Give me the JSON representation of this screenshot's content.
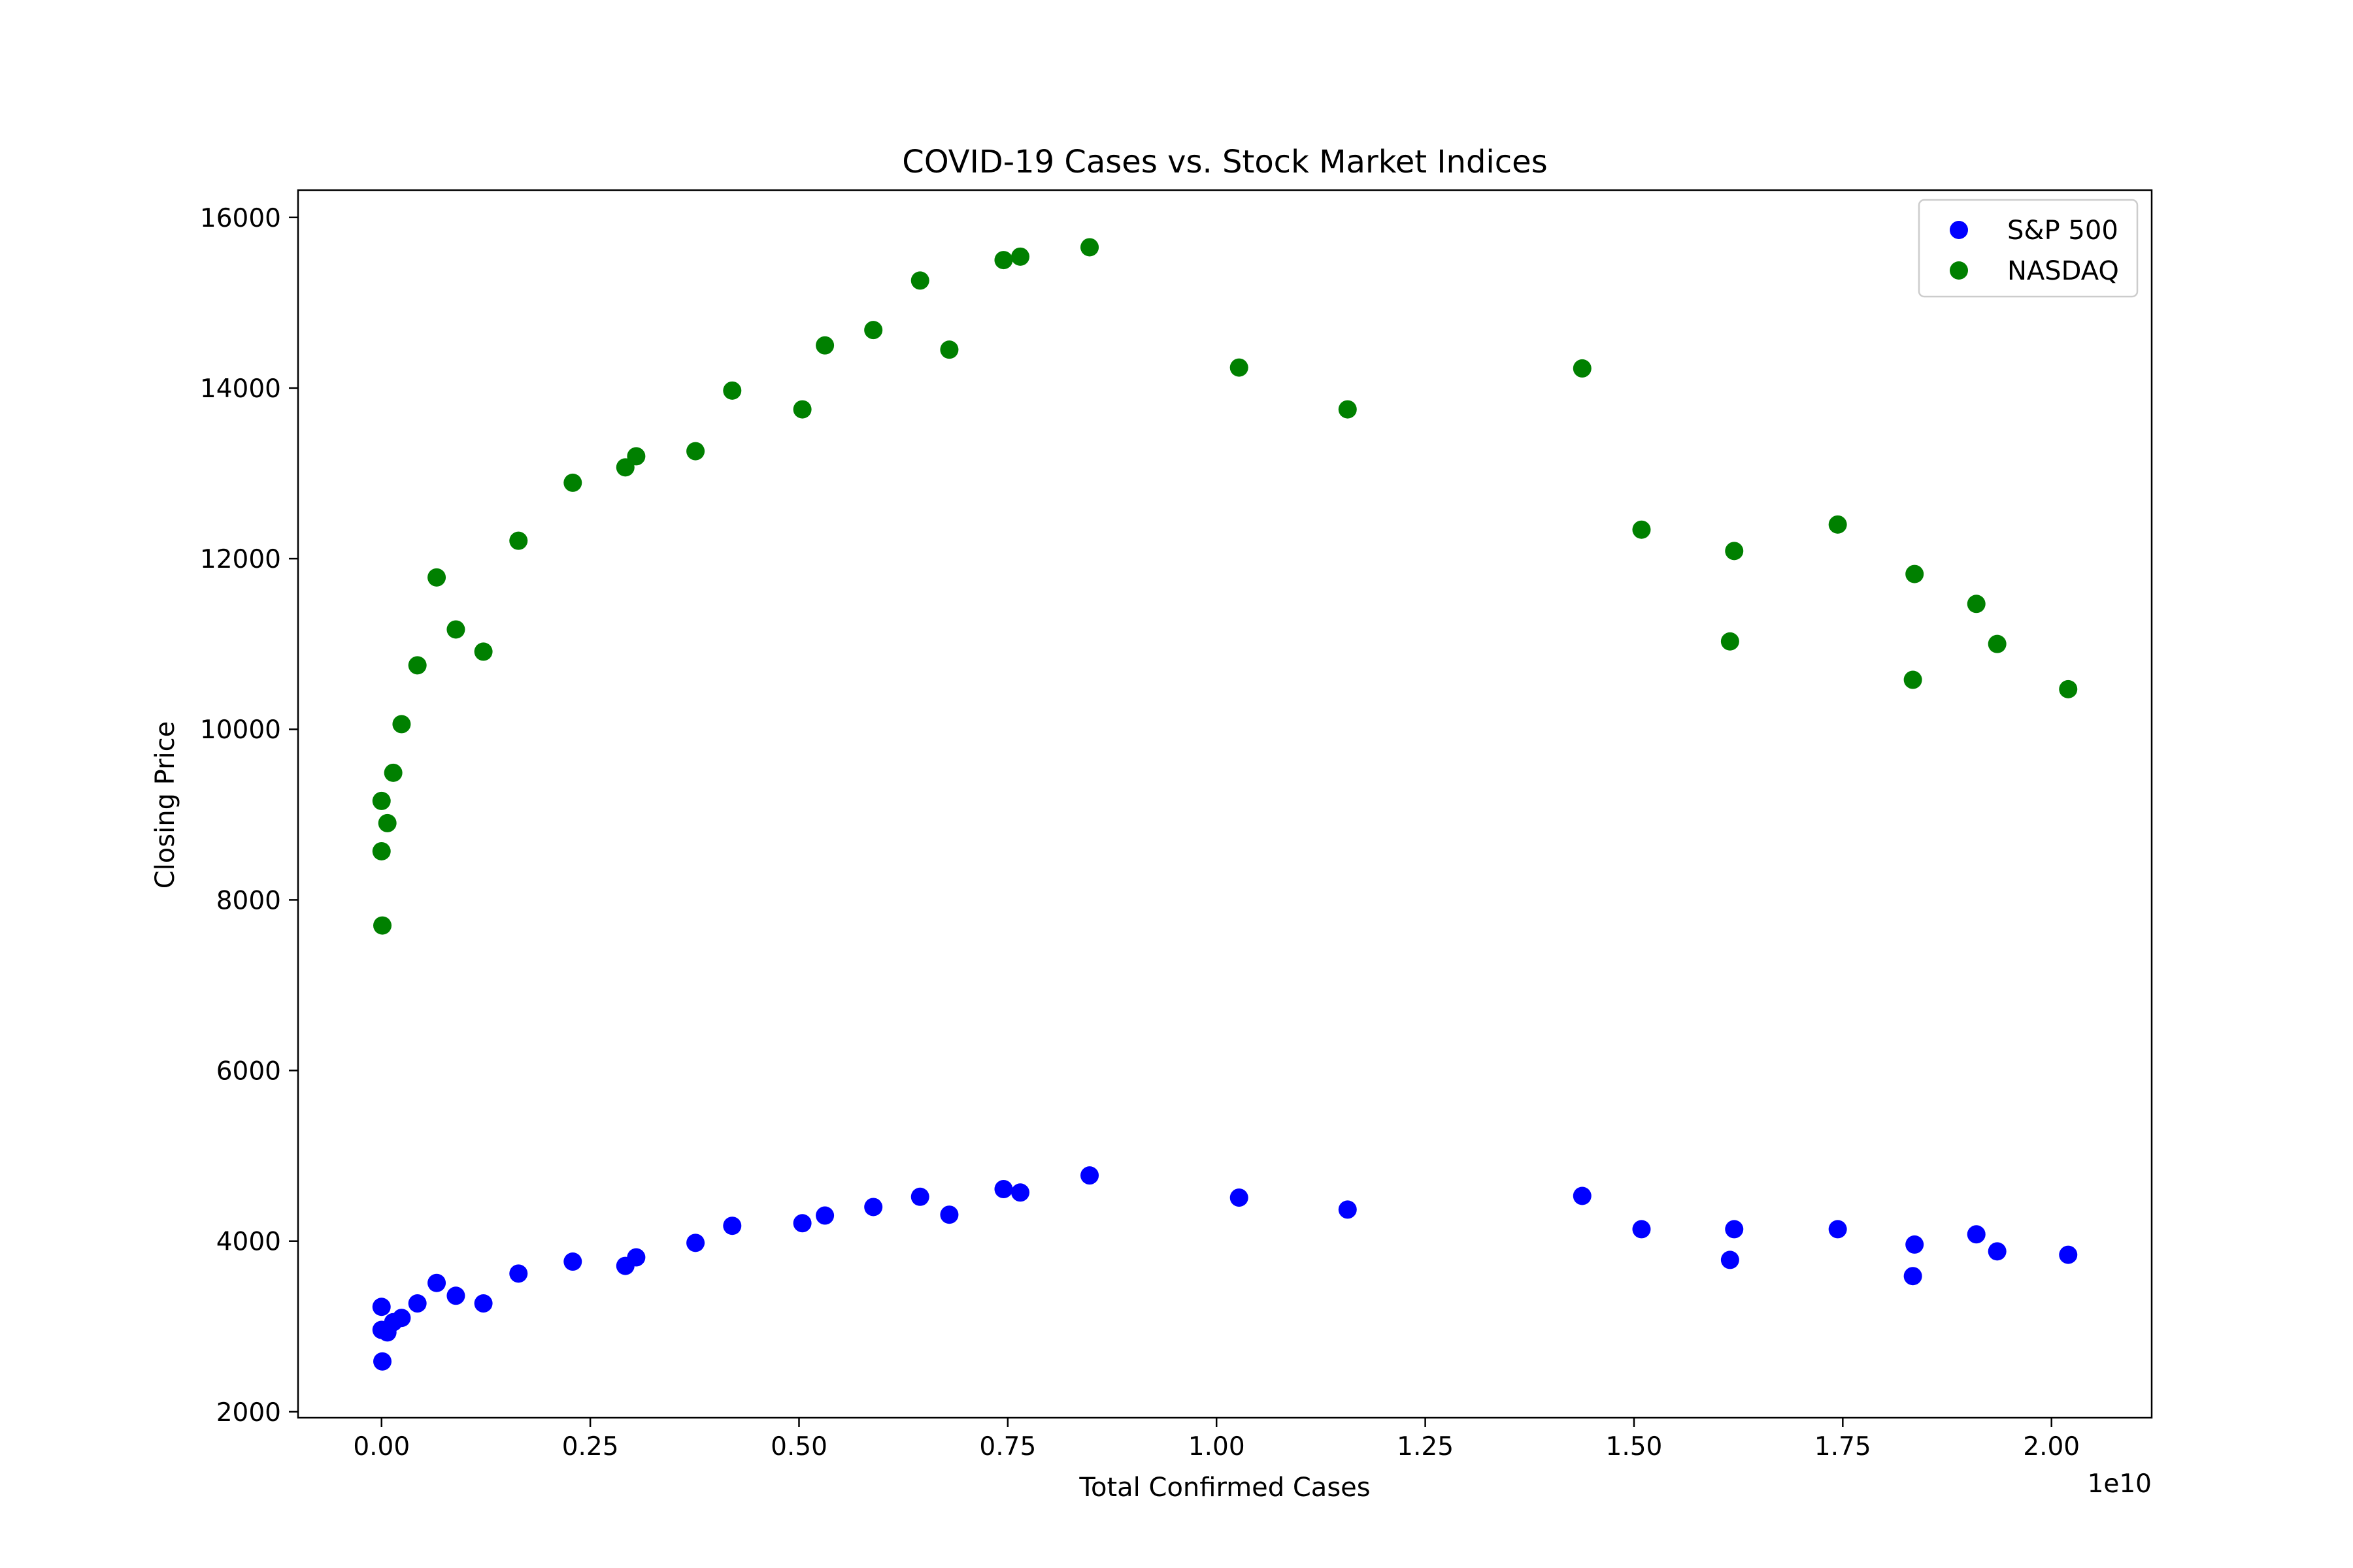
{
  "chart_data": {
    "type": "scatter",
    "title": "COVID-19 Cases vs. Stock Market Indices",
    "xlabel": "Total Confirmed Cases",
    "ylabel": "Closing Price",
    "x_offset_label": "1e10",
    "xlim": [
      -0.1,
      2.12
    ],
    "ylim": [
      1930,
      16320
    ],
    "x_scale_factor": 10000000000,
    "x_ticks": [
      {
        "value": 0.0,
        "label": "0.00"
      },
      {
        "value": 0.25,
        "label": "0.25"
      },
      {
        "value": 0.5,
        "label": "0.50"
      },
      {
        "value": 0.75,
        "label": "0.75"
      },
      {
        "value": 1.0,
        "label": "1.00"
      },
      {
        "value": 1.25,
        "label": "1.25"
      },
      {
        "value": 1.5,
        "label": "1.50"
      },
      {
        "value": 1.75,
        "label": "1.75"
      },
      {
        "value": 2.0,
        "label": "2.00"
      }
    ],
    "y_ticks": [
      {
        "value": 2000,
        "label": "2000"
      },
      {
        "value": 4000,
        "label": "4000"
      },
      {
        "value": 6000,
        "label": "6000"
      },
      {
        "value": 8000,
        "label": "8000"
      },
      {
        "value": 10000,
        "label": "10000"
      },
      {
        "value": 12000,
        "label": "12000"
      },
      {
        "value": 14000,
        "label": "14000"
      },
      {
        "value": 16000,
        "label": "16000"
      }
    ],
    "grid": false,
    "legend_position": "top-right",
    "series": [
      {
        "name": "S&P 500",
        "color": "#0000ff",
        "points": [
          {
            "x": 0.0,
            "y": 3230
          },
          {
            "x": 0.0,
            "y": 2960
          },
          {
            "x": 0.001,
            "y": 2590
          },
          {
            "x": 0.007,
            "y": 2930
          },
          {
            "x": 0.014,
            "y": 3050
          },
          {
            "x": 0.024,
            "y": 3100
          },
          {
            "x": 0.043,
            "y": 3270
          },
          {
            "x": 0.066,
            "y": 3510
          },
          {
            "x": 0.089,
            "y": 3360
          },
          {
            "x": 0.122,
            "y": 3270
          },
          {
            "x": 0.164,
            "y": 3620
          },
          {
            "x": 0.229,
            "y": 3760
          },
          {
            "x": 0.292,
            "y": 3710
          },
          {
            "x": 0.305,
            "y": 3810
          },
          {
            "x": 0.376,
            "y": 3980
          },
          {
            "x": 0.42,
            "y": 4180
          },
          {
            "x": 0.504,
            "y": 4210
          },
          {
            "x": 0.531,
            "y": 4300
          },
          {
            "x": 0.589,
            "y": 4400
          },
          {
            "x": 0.645,
            "y": 4520
          },
          {
            "x": 0.68,
            "y": 4310
          },
          {
            "x": 0.745,
            "y": 4610
          },
          {
            "x": 0.765,
            "y": 4570
          },
          {
            "x": 0.848,
            "y": 4770
          },
          {
            "x": 1.027,
            "y": 4510
          },
          {
            "x": 1.157,
            "y": 4370
          },
          {
            "x": 1.438,
            "y": 4530
          },
          {
            "x": 1.509,
            "y": 4140
          },
          {
            "x": 1.615,
            "y": 3780
          },
          {
            "x": 1.62,
            "y": 4140
          },
          {
            "x": 1.744,
            "y": 4140
          },
          {
            "x": 1.834,
            "y": 3590
          },
          {
            "x": 1.836,
            "y": 3960
          },
          {
            "x": 1.91,
            "y": 4080
          },
          {
            "x": 1.935,
            "y": 3880
          },
          {
            "x": 2.02,
            "y": 3840
          }
        ]
      },
      {
        "name": "NASDAQ",
        "color": "#008000",
        "points": [
          {
            "x": 0.0,
            "y": 9160
          },
          {
            "x": 0.0,
            "y": 8570
          },
          {
            "x": 0.001,
            "y": 7700
          },
          {
            "x": 0.007,
            "y": 8900
          },
          {
            "x": 0.014,
            "y": 9490
          },
          {
            "x": 0.024,
            "y": 10060
          },
          {
            "x": 0.043,
            "y": 10750
          },
          {
            "x": 0.066,
            "y": 11780
          },
          {
            "x": 0.089,
            "y": 11170
          },
          {
            "x": 0.122,
            "y": 10910
          },
          {
            "x": 0.164,
            "y": 12210
          },
          {
            "x": 0.229,
            "y": 12890
          },
          {
            "x": 0.292,
            "y": 13070
          },
          {
            "x": 0.305,
            "y": 13200
          },
          {
            "x": 0.376,
            "y": 13260
          },
          {
            "x": 0.42,
            "y": 13970
          },
          {
            "x": 0.504,
            "y": 13750
          },
          {
            "x": 0.531,
            "y": 14500
          },
          {
            "x": 0.589,
            "y": 14680
          },
          {
            "x": 0.645,
            "y": 15260
          },
          {
            "x": 0.68,
            "y": 14450
          },
          {
            "x": 0.745,
            "y": 15500
          },
          {
            "x": 0.765,
            "y": 15540
          },
          {
            "x": 0.848,
            "y": 15650
          },
          {
            "x": 1.027,
            "y": 14240
          },
          {
            "x": 1.157,
            "y": 13750
          },
          {
            "x": 1.438,
            "y": 14230
          },
          {
            "x": 1.509,
            "y": 12340
          },
          {
            "x": 1.615,
            "y": 11030
          },
          {
            "x": 1.62,
            "y": 12090
          },
          {
            "x": 1.744,
            "y": 12400
          },
          {
            "x": 1.834,
            "y": 10580
          },
          {
            "x": 1.836,
            "y": 11820
          },
          {
            "x": 1.91,
            "y": 11470
          },
          {
            "x": 1.935,
            "y": 11000
          },
          {
            "x": 2.02,
            "y": 10470
          }
        ]
      }
    ]
  }
}
